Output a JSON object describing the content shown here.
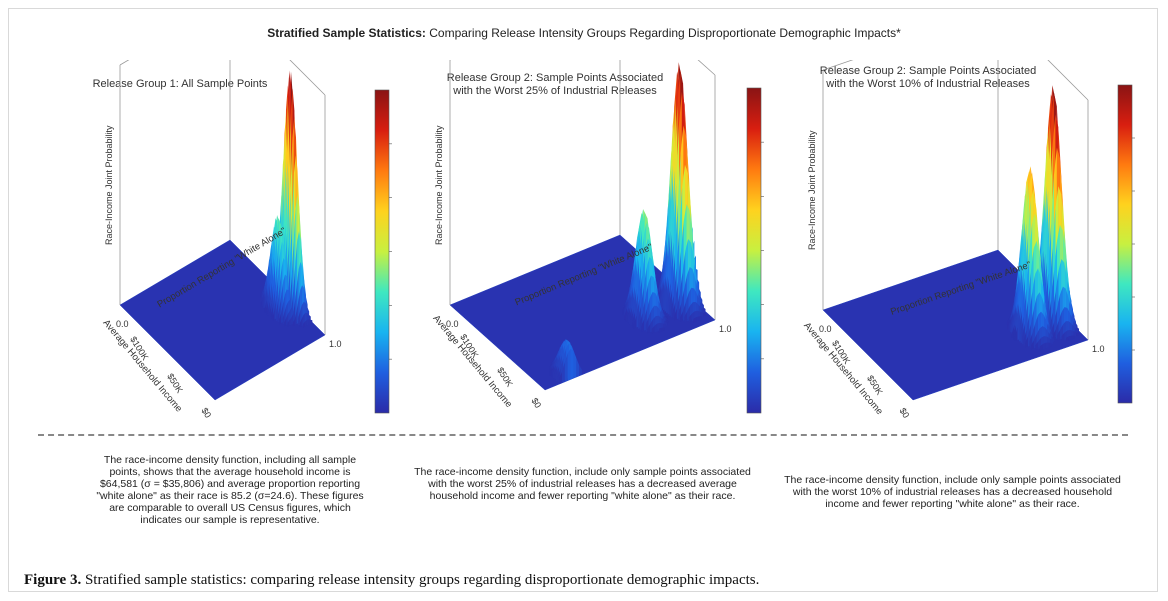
{
  "title": {
    "bold": "Stratified Sample Statistics:",
    "rest": " Comparing Release Intensity Groups Regarding Disproportionate Demographic Impacts*"
  },
  "colors": {
    "divider": "#888888",
    "colormap": [
      "#2b2ba8",
      "#1f5fe0",
      "#19b4f0",
      "#3fe8c0",
      "#c8f040",
      "#ffd21e",
      "#ff7a10",
      "#d81e10",
      "#8a1414"
    ]
  },
  "chart_data": [
    {
      "type": "surface",
      "title": "Release Group 1: All Sample Points",
      "zlabel": "Race-Income Joint Probability",
      "xlabel": "Average Household Income",
      "ylabel": "Proportion Reporting \"White Alone\"",
      "x_ticks": [
        "$0",
        "$50K",
        "$100K"
      ],
      "y_ticks": [
        "0.0",
        "1.0"
      ],
      "colorbar": "jet",
      "peaks": [
        {
          "income": 40000,
          "white_alone": 0.95,
          "height": 1.0
        },
        {
          "income": 45000,
          "white_alone": 0.87,
          "height": 0.4
        }
      ]
    },
    {
      "type": "surface",
      "title": "Release Group 2: Sample Points Associated\nwith the Worst 25% of Industrial Releases",
      "zlabel": "Race-Income Joint Probability",
      "xlabel": "Average Household Income",
      "ylabel": "Proportion Reporting \"White Alone\"",
      "x_ticks": [
        "$0",
        "$50K",
        "$100K"
      ],
      "y_ticks": [
        "0.0",
        "1.0"
      ],
      "colorbar": "jet",
      "peaks": [
        {
          "income": 30000,
          "white_alone": 0.92,
          "height": 1.0
        },
        {
          "income": 32000,
          "white_alone": 0.72,
          "height": 0.45
        },
        {
          "income": 35000,
          "white_alone": 1.0,
          "height": 0.35
        },
        {
          "income": 5000,
          "white_alone": 0.15,
          "height": 0.15
        }
      ]
    },
    {
      "type": "surface",
      "title": "Release Group 2: Sample Points Associated\nwith the Worst 10% of Industrial Releases",
      "zlabel": "Race-Income Joint Probability",
      "xlabel": "Average Household Income",
      "ylabel": "Proportion Reporting \"White Alone\"",
      "x_ticks": [
        "$0",
        "$50K",
        "$100K"
      ],
      "y_ticks": [
        "0.0",
        "1.0"
      ],
      "colorbar": "jet",
      "peaks": [
        {
          "income": 30000,
          "white_alone": 0.92,
          "height": 1.0
        },
        {
          "income": 28000,
          "white_alone": 0.78,
          "height": 0.7
        },
        {
          "income": 34000,
          "white_alone": 1.0,
          "height": 0.2
        }
      ]
    }
  ],
  "captions": [
    "The race-income density function, including all sample points, shows that the average household income is $64,581 (σ = $35,806) and average proportion reporting \"white alone\" as their race is 85.2 (σ=24.6). These figures are comparable to overall US Census figures, which indicates our sample is representative.",
    "The race-income density function, include only sample points associated with the worst 25% of industrial releases has a decreased average household income and fewer reporting \"white alone\" as their race.",
    "The race-income density function, include only sample points associated with the worst 10% of industrial releases has a decreased household income and fewer reporting \"white alone\" as their race."
  ],
  "figure_caption": {
    "label": "Figure 3.",
    "text": " Stratified sample statistics: comparing release intensity groups regarding disproportionate demographic impacts."
  }
}
